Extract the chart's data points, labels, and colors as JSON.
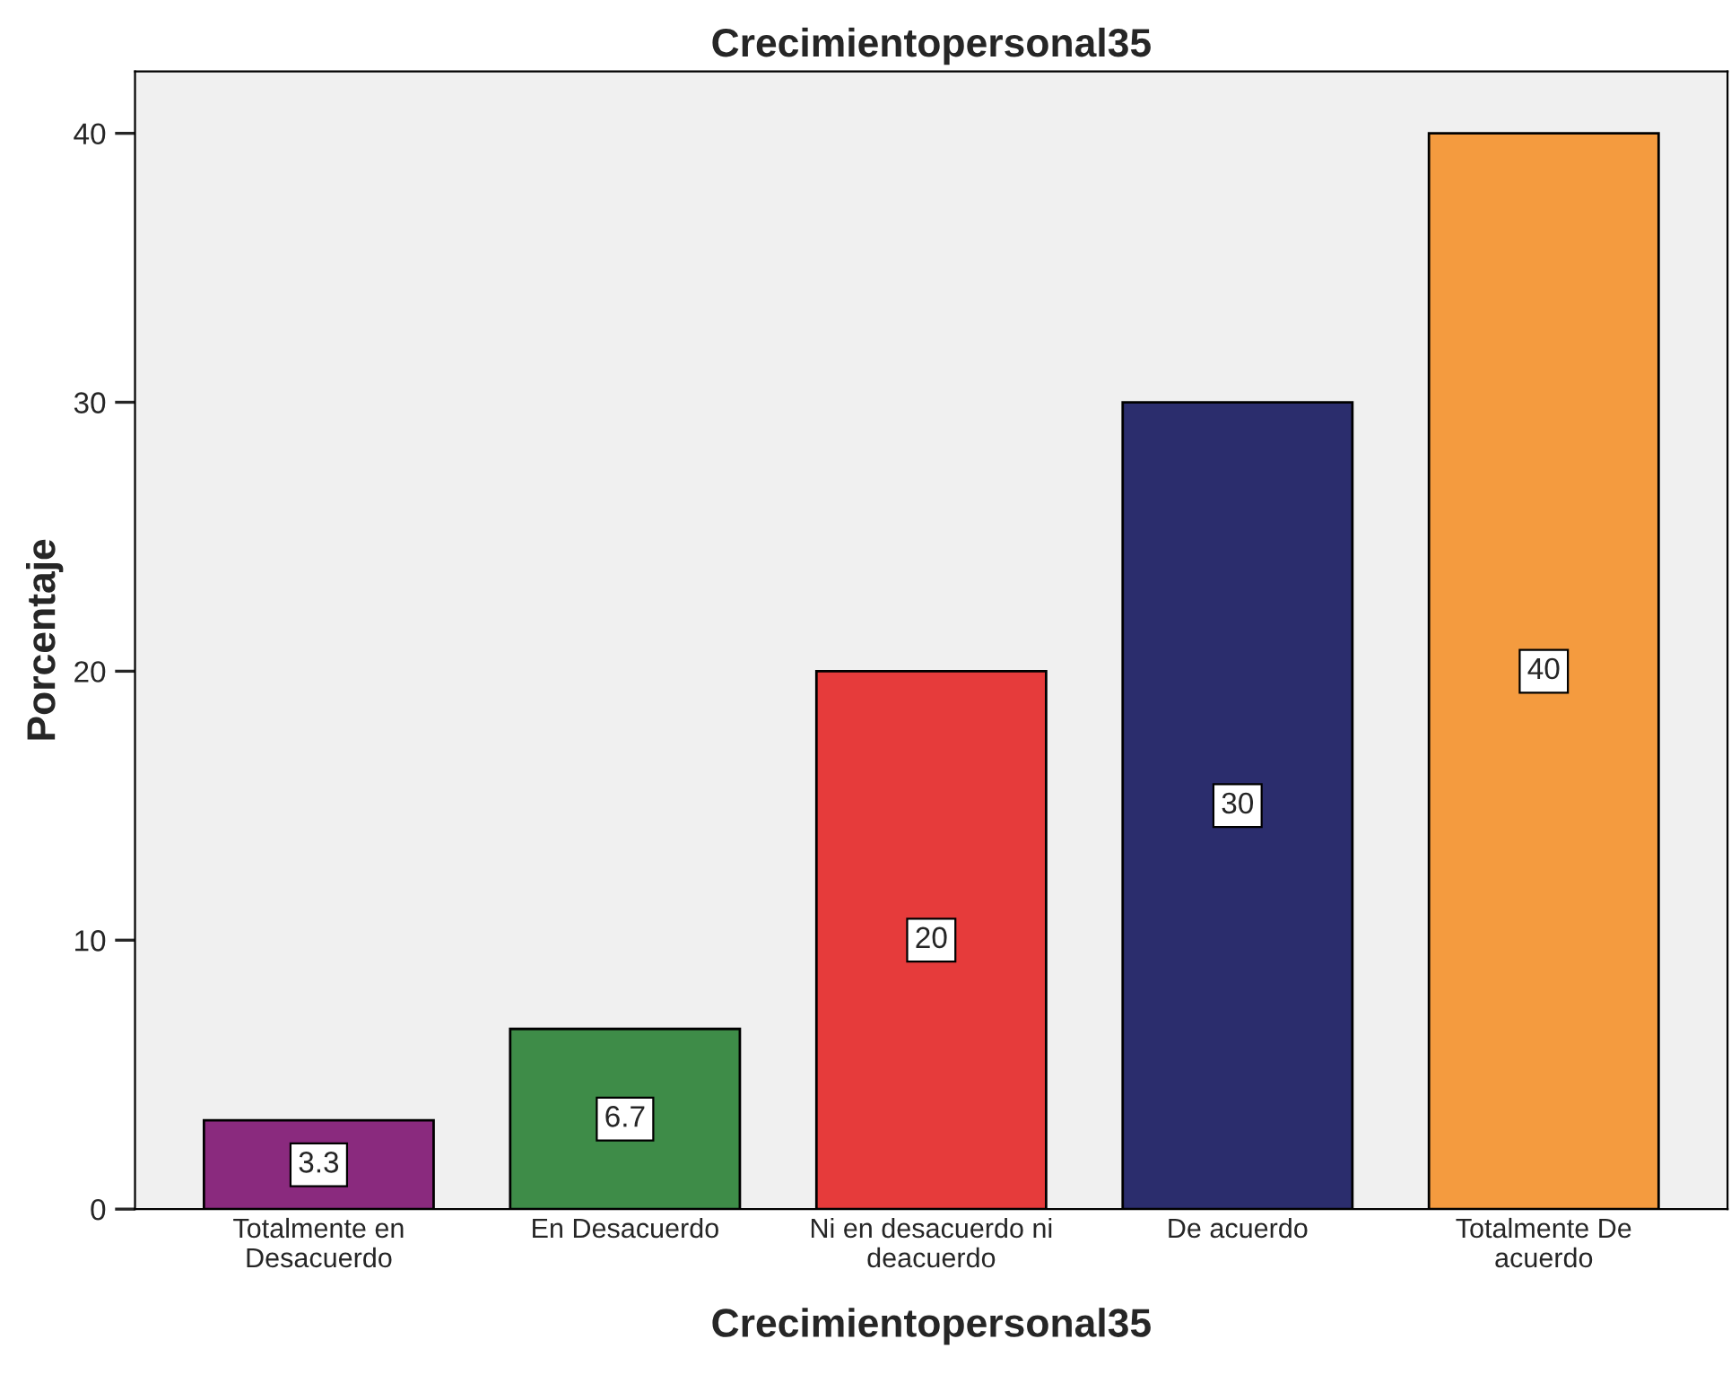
{
  "chart_data": {
    "type": "bar",
    "title": "Crecimientopersonal35",
    "xlabel": "Crecimientopersonal35",
    "ylabel": "Porcentaje",
    "categories": [
      "Totalmente en\nDesacuerdo",
      "En Desacuerdo",
      "Ni en desacuerdo ni\ndeacuerdo",
      "De acuerdo",
      "Totalmente De\nacuerdo"
    ],
    "values": [
      3.3,
      6.7,
      20,
      30,
      40
    ],
    "colors": [
      "#8a2a7e",
      "#3e8c48",
      "#e63b3b",
      "#2b2d6d",
      "#f49b3f"
    ],
    "ylim": [
      0,
      42.3
    ],
    "yticks": [
      0,
      10,
      20,
      30,
      40
    ],
    "grid": false,
    "data_labels": true
  }
}
